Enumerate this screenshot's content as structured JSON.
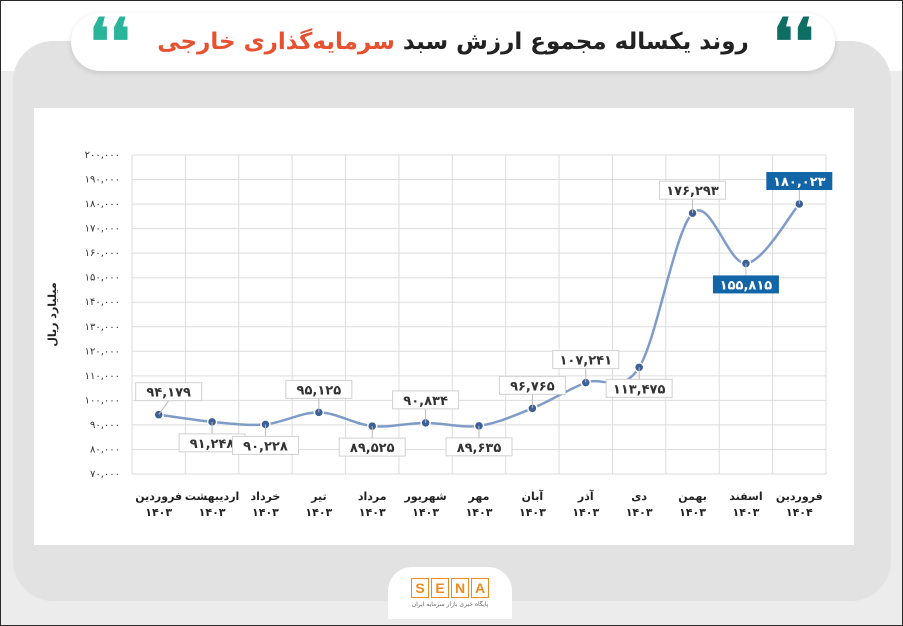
{
  "header": {
    "title_main": "روند یکساله مجموع ارزش سبد",
    "title_accent": "سرمایه‌گذاری خارجی",
    "quote_glyph": "❛❛"
  },
  "footer": {
    "logo_letters": [
      "S",
      "E",
      "N",
      "A"
    ],
    "logo_caption": "پایگاه خبری بازار سرمایه ایران"
  },
  "colors": {
    "line": "#7f9cc8",
    "marker": "#3d5f99",
    "highlight": "#1266a8",
    "accent": "#e8512f",
    "grid": "#dddddd"
  },
  "chart_data": {
    "type": "line",
    "ylabel": "میلیارد ریال",
    "ylim": [
      70000,
      200000
    ],
    "yticks": [
      {
        "value": 70000,
        "label": "۷۰,۰۰۰"
      },
      {
        "value": 80000,
        "label": "۸۰,۰۰۰"
      },
      {
        "value": 90000,
        "label": "۹۰,۰۰۰"
      },
      {
        "value": 100000,
        "label": "۱۰۰,۰۰۰"
      },
      {
        "value": 110000,
        "label": "۱۱۰,۰۰۰"
      },
      {
        "value": 120000,
        "label": "۱۲۰,۰۰۰"
      },
      {
        "value": 130000,
        "label": "۱۳۰,۰۰۰"
      },
      {
        "value": 140000,
        "label": "۱۴۰,۰۰۰"
      },
      {
        "value": 150000,
        "label": "۱۵۰,۰۰۰"
      },
      {
        "value": 160000,
        "label": "۱۶۰,۰۰۰"
      },
      {
        "value": 170000,
        "label": "۱۷۰,۰۰۰"
      },
      {
        "value": 180000,
        "label": "۱۸۰,۰۰۰"
      },
      {
        "value": 190000,
        "label": "۱۹۰,۰۰۰"
      },
      {
        "value": 200000,
        "label": "۲۰۰,۰۰۰"
      }
    ],
    "grid": true,
    "points": [
      {
        "month": "فروردین",
        "year": "۱۴۰۳",
        "value": 94179,
        "label": "۹۴,۱۷۹",
        "label_pos": "above",
        "highlight": false
      },
      {
        "month": "اردیبهشت",
        "year": "۱۴۰۳",
        "value": 91248,
        "label": "۹۱,۲۴۸",
        "label_pos": "below",
        "highlight": false
      },
      {
        "month": "خرداد",
        "year": "۱۴۰۳",
        "value": 90228,
        "label": "۹۰,۲۲۸",
        "label_pos": "below",
        "highlight": false
      },
      {
        "month": "تیر",
        "year": "۱۴۰۳",
        "value": 95125,
        "label": "۹۵,۱۲۵",
        "label_pos": "above",
        "highlight": false
      },
      {
        "month": "مرداد",
        "year": "۱۴۰۳",
        "value": 89525,
        "label": "۸۹,۵۲۵",
        "label_pos": "below",
        "highlight": false
      },
      {
        "month": "شهریور",
        "year": "۱۴۰۳",
        "value": 90834,
        "label": "۹۰,۸۳۴",
        "label_pos": "above",
        "highlight": false
      },
      {
        "month": "مهر",
        "year": "۱۴۰۳",
        "value": 89635,
        "label": "۸۹,۶۳۵",
        "label_pos": "below",
        "highlight": false
      },
      {
        "month": "آبان",
        "year": "۱۴۰۳",
        "value": 96765,
        "label": "۹۶,۷۶۵",
        "label_pos": "above",
        "highlight": false
      },
      {
        "month": "آذر",
        "year": "۱۴۰۳",
        "value": 107241,
        "label": "۱۰۷,۲۴۱",
        "label_pos": "above",
        "highlight": false
      },
      {
        "month": "دی",
        "year": "۱۴۰۳",
        "value": 113475,
        "label": "۱۱۳,۴۷۵",
        "label_pos": "below",
        "highlight": false
      },
      {
        "month": "بهمن",
        "year": "۱۴۰۳",
        "value": 176293,
        "label": "۱۷۶,۲۹۳",
        "label_pos": "above",
        "highlight": false
      },
      {
        "month": "اسفند",
        "year": "۱۴۰۳",
        "value": 155815,
        "label": "۱۵۵,۸۱۵",
        "label_pos": "below",
        "highlight": true
      },
      {
        "month": "فروردین",
        "year": "۱۴۰۴",
        "value": 180023,
        "label": "۱۸۰,۰۲۳",
        "label_pos": "above",
        "highlight": true
      }
    ]
  }
}
